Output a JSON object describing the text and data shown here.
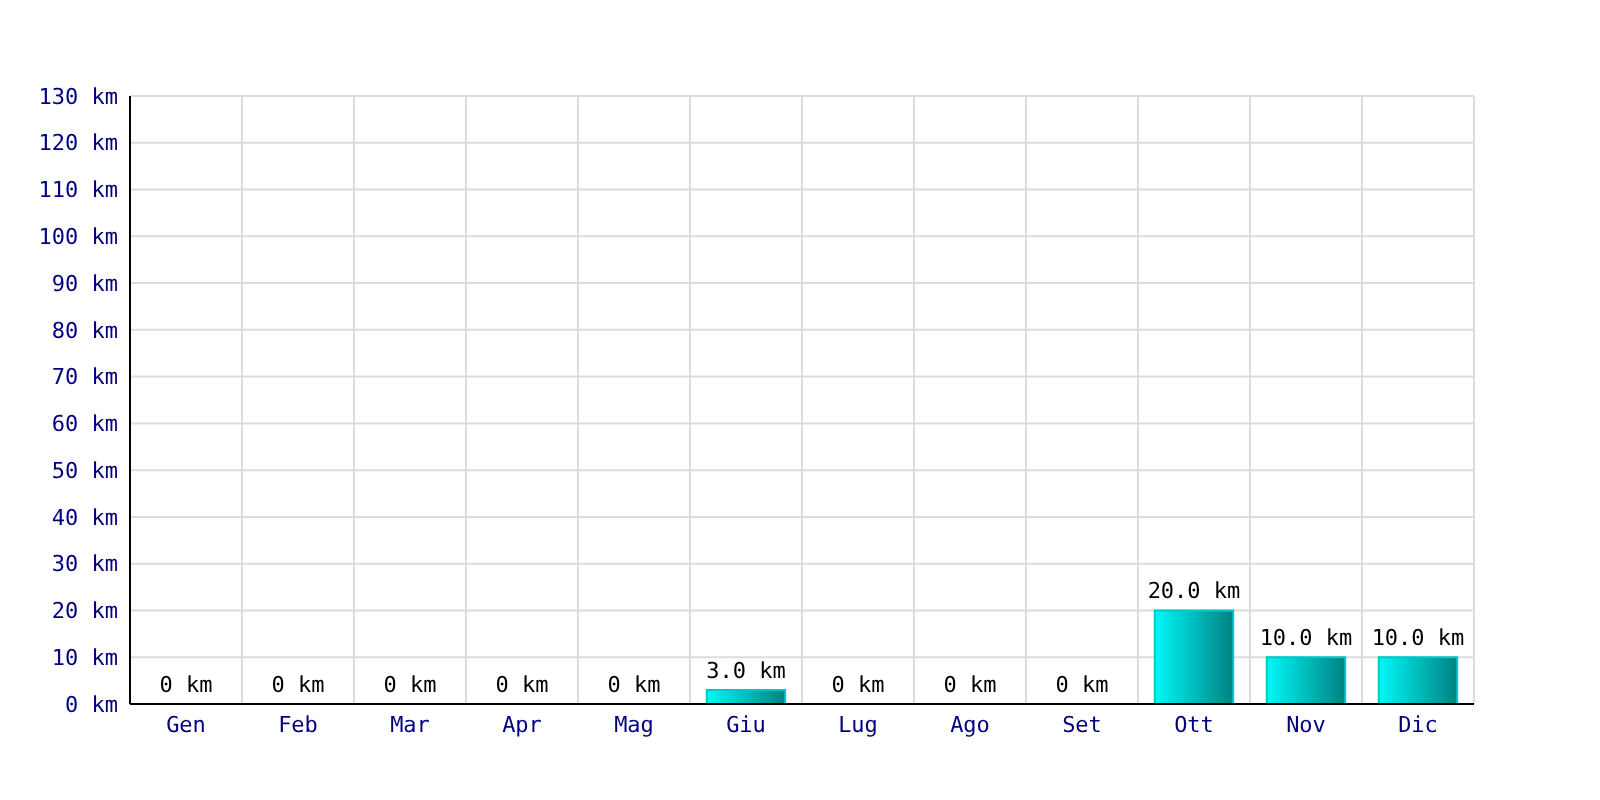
{
  "chart_data": {
    "type": "bar",
    "categories": [
      "Gen",
      "Feb",
      "Mar",
      "Apr",
      "Mag",
      "Giu",
      "Lug",
      "Ago",
      "Set",
      "Ott",
      "Nov",
      "Dic"
    ],
    "values": [
      0,
      0,
      0,
      0,
      0,
      3,
      0,
      0,
      0,
      20,
      10,
      10
    ],
    "value_labels": [
      "0 km",
      "0 km",
      "0 km",
      "0 km",
      "0 km",
      "3.0 km",
      "0 km",
      "0 km",
      "0 km",
      "20.0 km",
      "10.0 km",
      "10.0 km"
    ],
    "color": "#00c8c8",
    "ylim": [
      0,
      130
    ],
    "yticks": [
      {
        "value": 0,
        "label": "0 km"
      },
      {
        "value": 10,
        "label": "10 km"
      },
      {
        "value": 20,
        "label": "20 km"
      },
      {
        "value": 30,
        "label": "30 km"
      },
      {
        "value": 40,
        "label": "40 km"
      },
      {
        "value": 50,
        "label": "50 km"
      },
      {
        "value": 60,
        "label": "60 km"
      },
      {
        "value": 70,
        "label": "70 km"
      },
      {
        "value": 80,
        "label": "80 km"
      },
      {
        "value": 90,
        "label": "90 km"
      },
      {
        "value": 100,
        "label": "100 km"
      },
      {
        "value": 110,
        "label": "110 km"
      },
      {
        "value": 120,
        "label": "120 km"
      },
      {
        "value": 130,
        "label": "130 km"
      }
    ],
    "grid": true
  }
}
